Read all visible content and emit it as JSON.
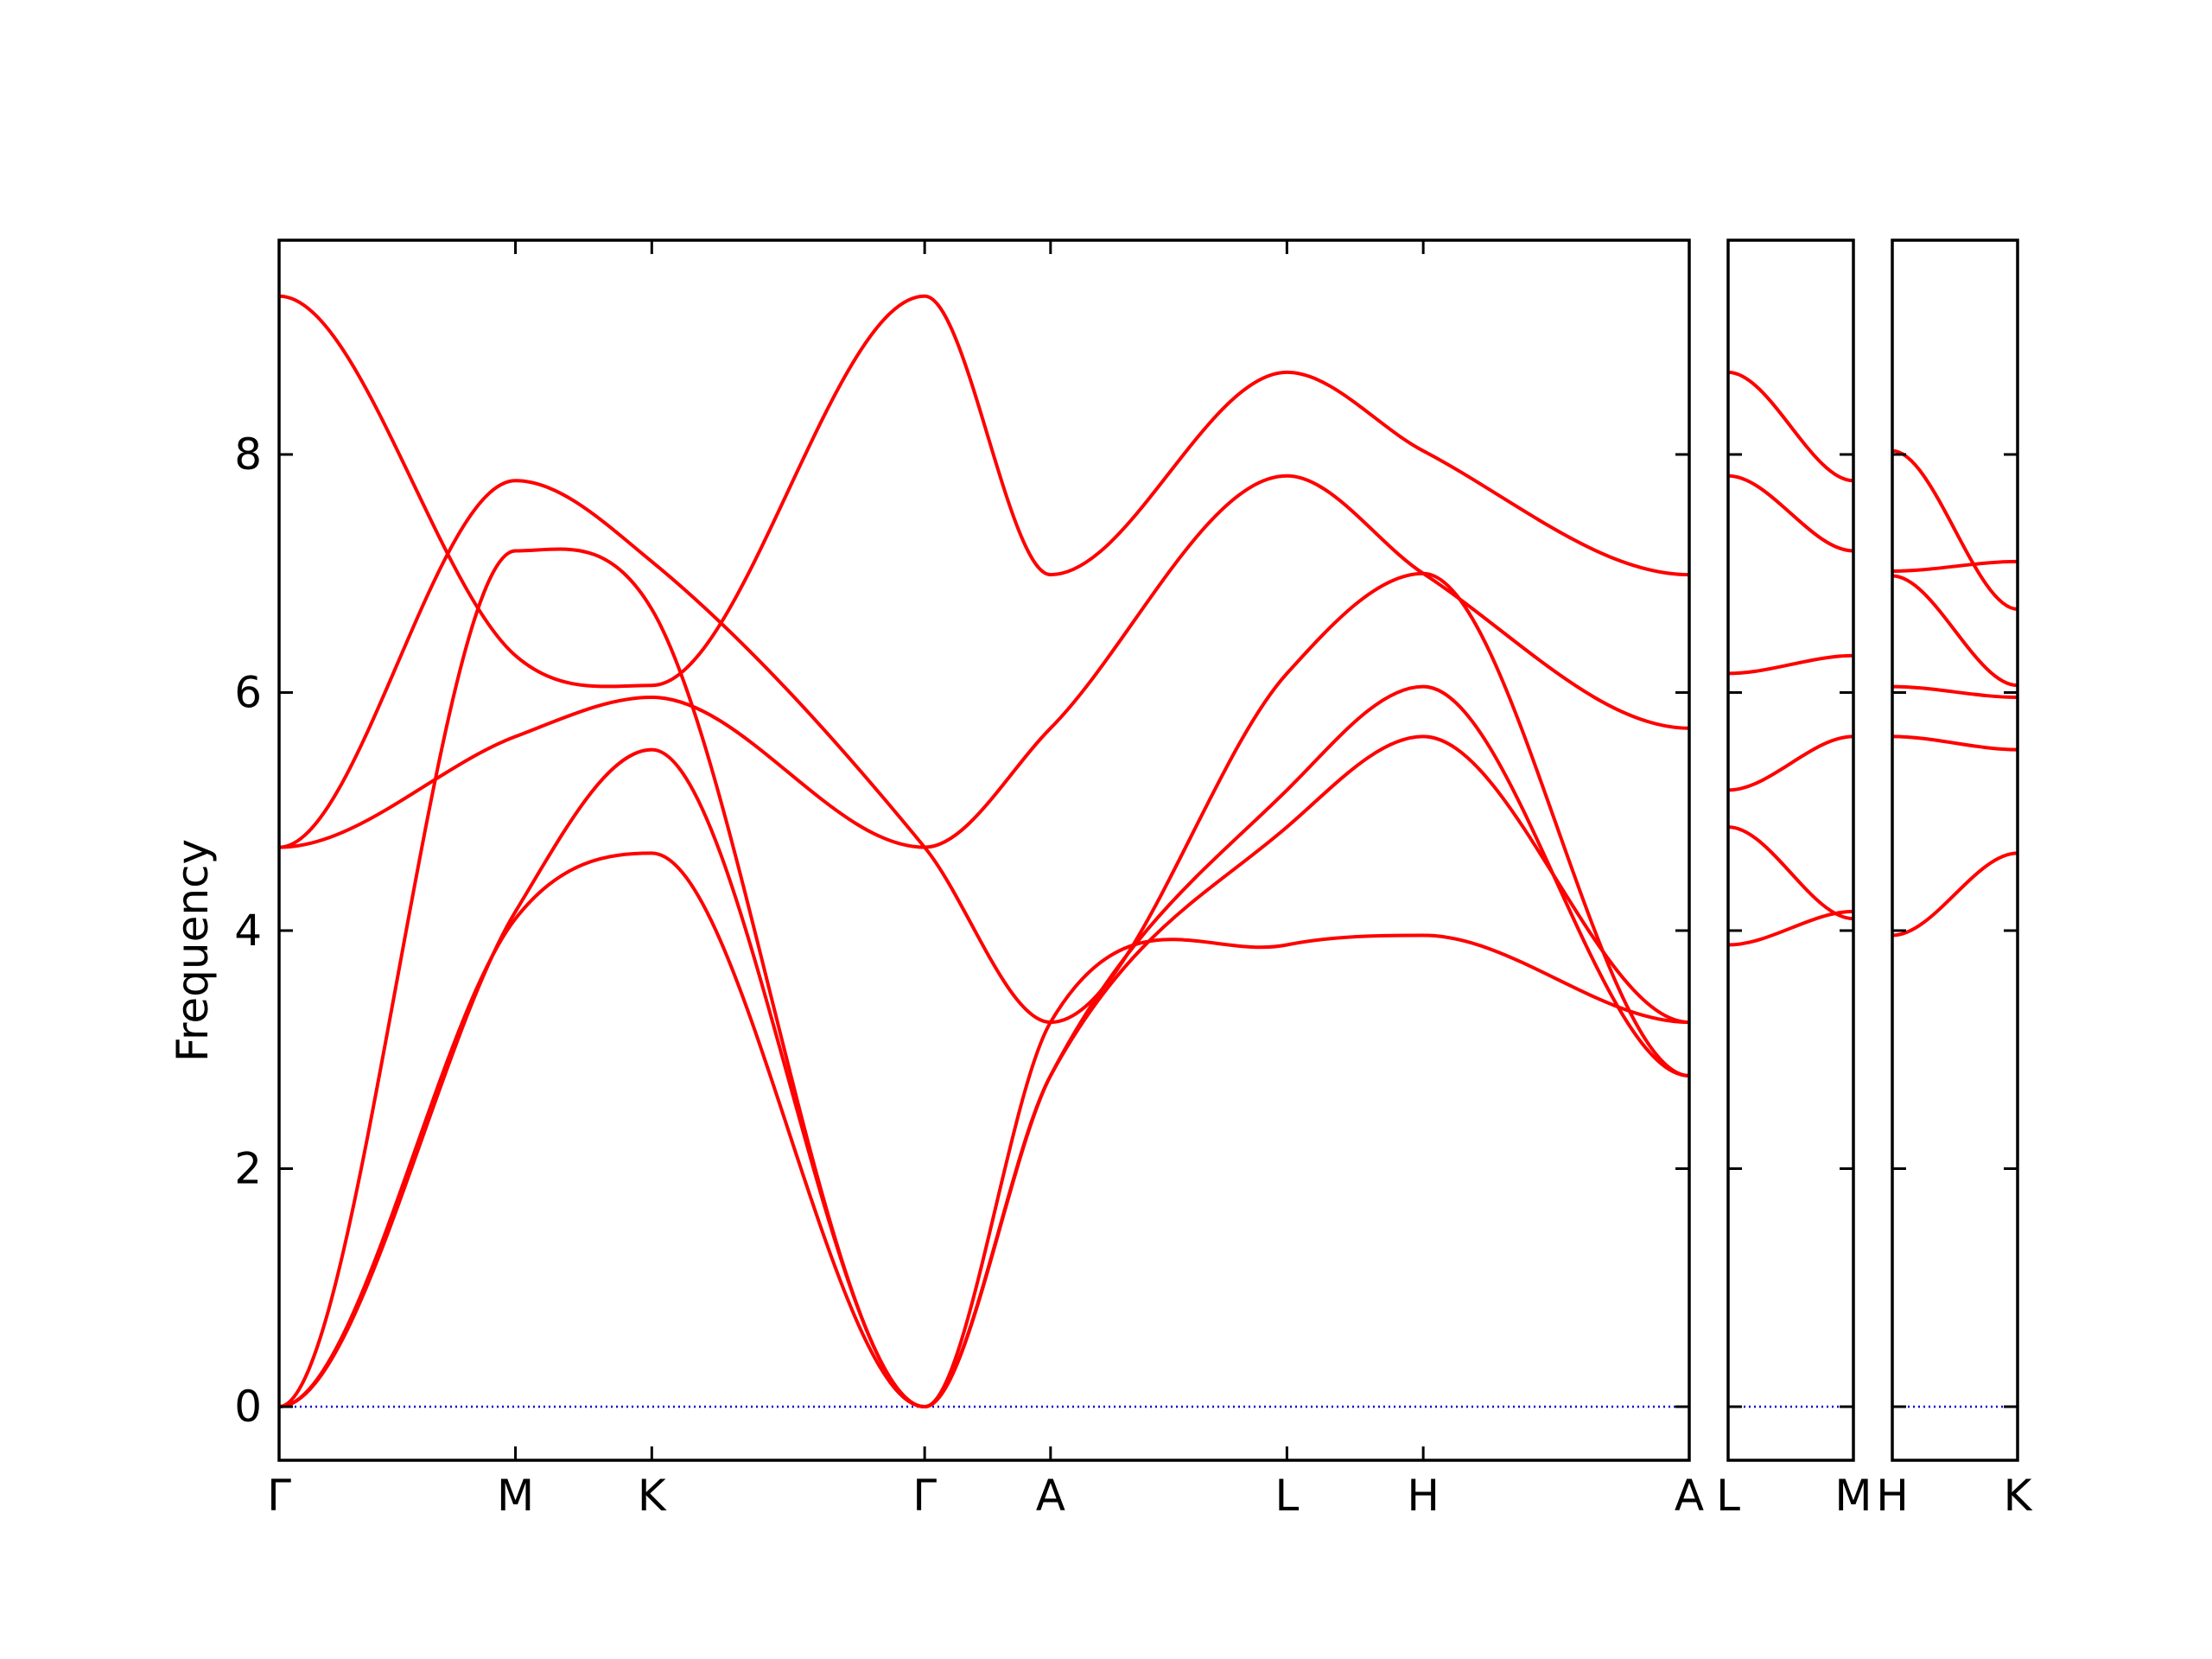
{
  "chart_data": {
    "type": "line",
    "title": "",
    "ylabel": "Frequency",
    "xlabel": "",
    "ylim": [
      -0.45,
      9.8
    ],
    "yticks": [
      0,
      2,
      4,
      6,
      8
    ],
    "grid": false,
    "colors": {
      "bands": "#ff0000",
      "zero_line": "#0000cc",
      "axes": "#000000"
    },
    "panels": [
      {
        "id": "p1",
        "xlim": [
          0,
          5.948
        ],
        "ticks": [
          {
            "x": 0,
            "label": "Γ"
          },
          {
            "x": 0.997,
            "label": "M"
          },
          {
            "x": 1.572,
            "label": "K"
          },
          {
            "x": 2.723,
            "label": "Γ"
          },
          {
            "x": 3.254,
            "label": "A"
          },
          {
            "x": 4.251,
            "label": "L"
          },
          {
            "x": 4.826,
            "label": "H"
          },
          {
            "x": 5.948,
            "label": "A"
          }
        ],
        "series": [
          {
            "name": "",
            "x": [
              0,
              0.997,
              1.572,
              2.723,
              3.254,
              4.251,
              4.826,
              5.948
            ],
            "y": [
              0,
              4.1,
              4.65,
              0,
              2.78,
              5.18,
              6.05,
              2.78
            ]
          },
          {
            "name": "",
            "x": [
              0,
              0.997,
              1.572,
              2.723,
              3.254,
              4.251,
              4.826,
              5.948
            ],
            "y": [
              0,
              4.16,
              5.52,
              0,
              2.78,
              4.87,
              5.63,
              3.23
            ]
          },
          {
            "name": "",
            "x": [
              0,
              0.997,
              1.572,
              2.723,
              3.254,
              4.251,
              4.826,
              5.948
            ],
            "y": [
              0,
              7.19,
              6.7,
              0,
              3.23,
              3.88,
              3.96,
              3.23
            ]
          },
          {
            "name": "",
            "x": [
              0,
              0.997,
              1.572,
              2.723,
              3.254,
              4.251,
              4.826,
              5.948
            ],
            "y": [
              4.7,
              7.78,
              7.1,
              4.7,
              3.23,
              6.16,
              7.0,
              2.78
            ]
          },
          {
            "name": "",
            "x": [
              0,
              0.997,
              1.572,
              2.723,
              3.254,
              4.251,
              4.826,
              5.948
            ],
            "y": [
              4.7,
              5.63,
              5.96,
              4.7,
              5.7,
              7.82,
              7.0,
              5.7
            ]
          },
          {
            "name": "",
            "x": [
              0,
              0.997,
              1.572,
              2.723,
              3.254,
              4.251,
              4.826,
              5.948
            ],
            "y": [
              9.33,
              6.31,
              6.06,
              9.33,
              6.99,
              8.69,
              8.03,
              6.99
            ]
          }
        ]
      },
      {
        "id": "p2",
        "xlim": [
          0,
          0.531
        ],
        "ticks": [
          {
            "x": 0,
            "label": "L"
          },
          {
            "x": 0.531,
            "label": "M"
          }
        ],
        "series": [
          {
            "name": "",
            "x": [
              0,
              0.531
            ],
            "y": [
              3.88,
              4.16
            ]
          },
          {
            "name": "",
            "x": [
              0,
              0.531
            ],
            "y": [
              4.87,
              4.1
            ]
          },
          {
            "name": "",
            "x": [
              0,
              0.531
            ],
            "y": [
              5.18,
              5.63
            ]
          },
          {
            "name": "",
            "x": [
              0,
              0.531
            ],
            "y": [
              6.16,
              6.31
            ]
          },
          {
            "name": "",
            "x": [
              0,
              0.531
            ],
            "y": [
              7.82,
              7.19
            ]
          },
          {
            "name": "",
            "x": [
              0,
              0.531
            ],
            "y": [
              8.69,
              7.78
            ]
          }
        ]
      },
      {
        "id": "p3",
        "xlim": [
          0,
          0.531
        ],
        "ticks": [
          {
            "x": 0,
            "label": "H"
          },
          {
            "x": 0.531,
            "label": "K"
          }
        ],
        "series": [
          {
            "name": "",
            "x": [
              0,
              0.531
            ],
            "y": [
              3.96,
              4.65
            ]
          },
          {
            "name": "",
            "x": [
              0,
              0.531
            ],
            "y": [
              5.63,
              5.52
            ]
          },
          {
            "name": "",
            "x": [
              0,
              0.531
            ],
            "y": [
              6.05,
              5.96
            ]
          },
          {
            "name": "",
            "x": [
              0,
              0.531
            ],
            "y": [
              6.98,
              6.06
            ]
          },
          {
            "name": "",
            "x": [
              0,
              0.531
            ],
            "y": [
              7.02,
              7.1
            ]
          },
          {
            "name": "",
            "x": [
              0,
              0.531
            ],
            "y": [
              8.03,
              6.7
            ]
          }
        ]
      }
    ]
  }
}
